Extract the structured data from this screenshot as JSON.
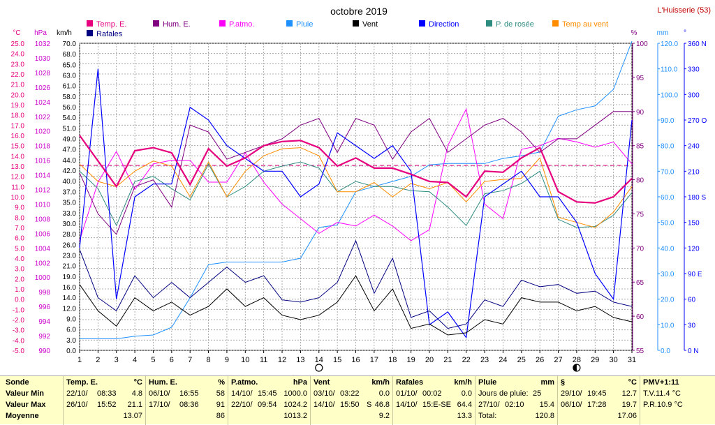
{
  "chart_data": {
    "type": "line",
    "title": "octobre 2019",
    "station": "L'Huisserie (53)",
    "axis_units": {
      "temp": "°C",
      "pressure": "hPa",
      "wind": "km/h",
      "hum": "%",
      "rain": "mm",
      "dir": "°"
    },
    "temp_ticks": [
      "25.0",
      "24.0",
      "23.0",
      "22.0",
      "21.0",
      "20.0",
      "19.0",
      "18.0",
      "17.0",
      "16.0",
      "15.0",
      "14.0",
      "13.0",
      "12.0",
      "11.0",
      "10.0",
      "9.0",
      "8.0",
      "7.0",
      "6.0",
      "5.0",
      "4.0",
      "3.0",
      "2.0",
      "1.0",
      "0.0",
      "-1.0",
      "-2.0",
      "-3.0",
      "-4.0",
      "-5.0"
    ],
    "pressure_ticks": [
      "1032",
      "1030",
      "1028",
      "1026",
      "1024",
      "1022",
      "1020",
      "1018",
      "1016",
      "1014",
      "1012",
      "1010",
      "1008",
      "1006",
      "1004",
      "1002",
      "1000",
      "998",
      "996",
      "994",
      "992",
      "990"
    ],
    "wind_ticks": [
      "70.0",
      "68.0",
      "65.0",
      "63.0",
      "61.0",
      "58.0",
      "56.0",
      "54.0",
      "51.0",
      "49.0",
      "47.0",
      "44.0",
      "42.0",
      "40.0",
      "37.0",
      "35.0",
      "33.0",
      "30.0",
      "28.0",
      "26.0",
      "23.0",
      "21.0",
      "19.0",
      "16.0",
      "14.0",
      "12.0",
      "9.0",
      "6.0",
      "3.0",
      "0.0"
    ],
    "hum_ticks": [
      "100",
      "95",
      "90",
      "85",
      "80",
      "75",
      "70",
      "65",
      "60",
      "55"
    ],
    "rain_ticks": [
      "120.0",
      "110.0",
      "100.0",
      "90.0",
      "80.0",
      "70.0",
      "60.0",
      "50.0",
      "40.0",
      "30.0",
      "20.0",
      "10.0",
      "0.0"
    ],
    "dir_ticks": [
      "360 N",
      "330",
      "300",
      "270 O",
      "240",
      "210",
      "180 S",
      "150",
      "120",
      "90 E",
      "60",
      "30",
      "0 N"
    ],
    "x": [
      1,
      2,
      3,
      4,
      5,
      6,
      7,
      8,
      9,
      10,
      11,
      12,
      13,
      14,
      15,
      16,
      17,
      18,
      19,
      20,
      21,
      22,
      23,
      24,
      25,
      26,
      27,
      28,
      29,
      30,
      31
    ],
    "x_labels": [
      "1",
      "2",
      "3",
      "4",
      "5",
      "6",
      "7",
      "8",
      "9",
      "10",
      "11",
      "12",
      "13",
      "14",
      "15",
      "16",
      "17",
      "18",
      "19",
      "20",
      "21",
      "22",
      "23",
      "24",
      "25",
      "26",
      "27",
      "28",
      "29",
      "30",
      "31"
    ],
    "moon_new_day": 14,
    "moon_full_day": 28,
    "legend": [
      {
        "name": "Temp. E.",
        "color": "#e6007e"
      },
      {
        "name": "Hum. E.",
        "color": "#800080"
      },
      {
        "name": "P.atmo.",
        "color": "#ff00ff"
      },
      {
        "name": "Pluie",
        "color": "#1e90ff"
      },
      {
        "name": "Vent",
        "color": "#000000"
      },
      {
        "name": "Direction",
        "color": "#0000ff"
      },
      {
        "name": "P. de rosée",
        "color": "#2e8b80"
      },
      {
        "name": "Temp au vent",
        "color": "#ff8c00"
      },
      {
        "name": "Rafales",
        "color": "#000080"
      }
    ],
    "series": {
      "temp": [
        16.0,
        13.5,
        11.0,
        14.5,
        14.8,
        14.3,
        11.2,
        14.7,
        13.0,
        13.8,
        15.0,
        15.4,
        15.5,
        14.8,
        13.0,
        13.8,
        12.8,
        12.8,
        12.2,
        11.5,
        11.4,
        10.0,
        12.5,
        12.4,
        13.8,
        14.8,
        10.5,
        9.5,
        9.4,
        10.0,
        11.8
      ],
      "hum": [
        81,
        75,
        72,
        79,
        80,
        76,
        88,
        87,
        83,
        84,
        85,
        86,
        88,
        89,
        84,
        89,
        88,
        83,
        87,
        89,
        84,
        86,
        88,
        89,
        87,
        84,
        86,
        86,
        88,
        90,
        90
      ],
      "pressure": [
        1005.0,
        1013.0,
        1017.2,
        1012.0,
        1015.5,
        1016.0,
        1016.0,
        1013.0,
        1013.0,
        1017.0,
        1013.0,
        1010.0,
        1008.0,
        1006.0,
        1007.5,
        1007.0,
        1008.5,
        1007.0,
        1005.0,
        1006.5,
        1018.0,
        1023.0,
        1010.0,
        1008.0,
        1017.5,
        1018.0,
        1019.0,
        1018.5,
        1017.8,
        1018.5,
        1015.5
      ],
      "rain": [
        4.5,
        4.5,
        4.5,
        5.5,
        6.0,
        9.0,
        20.5,
        33.5,
        34.5,
        34.5,
        34.5,
        34.5,
        36.0,
        48.0,
        49.0,
        62.0,
        64.0,
        66.0,
        68.0,
        72.5,
        73.0,
        73.0,
        73.0,
        75.0,
        76.0,
        77.5,
        91.5,
        94.0,
        95.5,
        102.0,
        120.8
      ],
      "wind": [
        15.0,
        9.0,
        5.5,
        12.0,
        9.0,
        11.0,
        8.0,
        10.0,
        14.0,
        10.0,
        12.0,
        8.0,
        7.0,
        8.0,
        11.0,
        17.0,
        9.0,
        14.0,
        5.0,
        6.0,
        3.5,
        4.0,
        7.0,
        6.0,
        12.0,
        11.0,
        11.0,
        9.0,
        10.0,
        7.5,
        6.5
      ],
      "direction": [
        120,
        330,
        60,
        180,
        195,
        195,
        285,
        270,
        240,
        225,
        210,
        210,
        180,
        195,
        255,
        240,
        225,
        240,
        210,
        30,
        45,
        15,
        180,
        195,
        210,
        180,
        180,
        150,
        90,
        60,
        270
      ],
      "dewpoint": [
        12.5,
        10.8,
        7.2,
        11.5,
        12.0,
        10.8,
        9.7,
        13.2,
        10.0,
        11.0,
        12.5,
        13.0,
        13.4,
        12.8,
        10.5,
        11.5,
        11.0,
        11.0,
        10.6,
        10.5,
        9.0,
        7.2,
        10.3,
        10.6,
        11.3,
        12.5,
        7.8,
        7.0,
        7.1,
        8.2,
        10.4
      ],
      "windchill": [
        13.2,
        11.5,
        11.0,
        12.5,
        13.5,
        13.0,
        10.0,
        13.4,
        10.0,
        12.5,
        14.0,
        14.7,
        14.8,
        14.0,
        10.5,
        10.5,
        11.4,
        10.0,
        11.3,
        10.8,
        11.4,
        9.5,
        11.5,
        11.7,
        11.8,
        13.8,
        8.0,
        7.5,
        7.0,
        8.5,
        11.0
      ],
      "gusts": [
        23.0,
        12.0,
        9.0,
        17.0,
        12.0,
        15.5,
        12.0,
        15.5,
        19.0,
        15.5,
        17.0,
        11.5,
        11.0,
        12.0,
        15.5,
        25.0,
        13.0,
        21.0,
        7.5,
        9.0,
        5.0,
        6.0,
        11.5,
        10.0,
        16.0,
        14.5,
        15.0,
        13.0,
        13.5,
        11.0,
        10.0
      ]
    },
    "temp_mean": 13.07
  },
  "summary": {
    "row_labels": [
      "Sonde",
      "Valeur Min",
      "Valeur Max",
      "Moyenne"
    ],
    "temp": {
      "title": "Temp. E.",
      "unit": "°C",
      "min_date": "22/10/",
      "min_time": "08:33",
      "min": "4.8",
      "max_date": "26/10/",
      "max_time": "15:52",
      "max": "21.1",
      "mean": "13.07"
    },
    "hum": {
      "title": "Hum. E.",
      "unit": "%",
      "min_date": "06/10/",
      "min_time": "16:55",
      "min": "58",
      "max_date": "17/10/",
      "max_time": "08:36",
      "max": "91",
      "mean": "86"
    },
    "press": {
      "title": "P.atmo.",
      "unit": "hPa",
      "min_date": "14/10/",
      "min_time": "15:45",
      "min": "1000.0",
      "max_date": "22/10/",
      "max_time": "09:54",
      "max": "1024.2",
      "mean": "1013.2"
    },
    "wind": {
      "title": "Vent",
      "unit": "km/h",
      "min_date": "03/10/",
      "min_time": "03:22",
      "min": "0.0",
      "max_date": "14/10/",
      "max_time": "15:50",
      "max_dir": "S",
      "max": "46.8",
      "mean": "9.2"
    },
    "gust": {
      "title": "Rafales",
      "unit": "km/h",
      "min_date": "01/10/",
      "min_time": "00:02",
      "min": "0.0",
      "max_date": "14/10/",
      "max_time": "15:E-SE",
      "max": "64.4",
      "mean": "13.3"
    },
    "rain": {
      "title": "Pluie",
      "unit": "mm",
      "days_label": "Jours de pluie:",
      "days": "25",
      "max_date": "27/10/",
      "max_time": "02:10",
      "max": "15.4",
      "total_label": "Total:",
      "total": "120.8"
    },
    "sect": {
      "title": "§",
      "unit": "°C",
      "min_date": "29/10/",
      "min_time": "19:45",
      "min": "12.7",
      "max_date": "06/10/",
      "max_time": "17:28",
      "max": "19.7",
      "mean": "17.06"
    },
    "pmv": {
      "title": "PMV+1:11",
      "line1": "T.V.11.4 °C",
      "line2": "P.R.10.9 °C"
    }
  }
}
